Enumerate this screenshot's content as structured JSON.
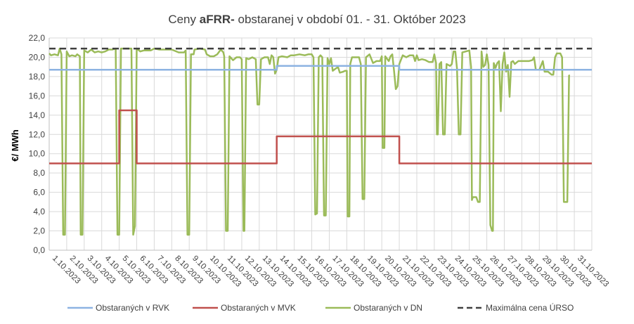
{
  "chart_data": {
    "type": "line",
    "title_prefix": "Ceny ",
    "title_bold": "aFRR-",
    "title_suffix": " obstaranej v období 01. - 31. Október 2023",
    "ylabel": "€/ MWh",
    "ylim": [
      0,
      22
    ],
    "yticks": [
      "0,0",
      "2,0",
      "4,0",
      "6,0",
      "8,0",
      "10,0",
      "12,0",
      "14,0",
      "16,0",
      "18,0",
      "20,0",
      "22,0"
    ],
    "grid": true,
    "legend_position": "bottom",
    "xlim": [
      1,
      32
    ],
    "categories": [
      "1.10.2023",
      "2.10.2023",
      "3.10.2023",
      "4.10.2023",
      "5.10.2023",
      "6.10.2023",
      "7.10.2023",
      "8.10.2023",
      "9.10.2023",
      "10.10.2023",
      "11.10.2023",
      "12.10.2023",
      "13.10.2023",
      "14.10.2023",
      "15.10.2023",
      "16.10.2023",
      "17.10.2023",
      "18.10.2023",
      "19.10.2023",
      "20.10.2023",
      "21.10.2023",
      "22.10.2023",
      "23.10.2023",
      "24.10.2023",
      "25.10.2023",
      "26.10.2023",
      "27.10.2023",
      "28.10.2023",
      "29.10.2023",
      "30.10.2023",
      "31.10.2023"
    ],
    "series": [
      {
        "name": "Obstaraných v RVK",
        "color": "#8db3e2",
        "style": "solid",
        "points": [
          [
            1,
            18.7
          ],
          [
            14,
            18.7
          ],
          [
            14,
            19.1
          ],
          [
            21,
            19.1
          ],
          [
            21,
            18.7
          ],
          [
            32,
            18.7
          ]
        ]
      },
      {
        "name": "Obstaraných v MVK",
        "color": "#c0504d",
        "style": "solid",
        "points": [
          [
            1,
            9.0
          ],
          [
            5,
            9.0
          ],
          [
            5,
            14.5
          ],
          [
            6,
            14.5
          ],
          [
            6,
            9.0
          ],
          [
            14,
            9.0
          ],
          [
            14,
            11.8
          ],
          [
            21,
            11.8
          ],
          [
            21,
            9.0
          ],
          [
            32,
            9.0
          ]
        ]
      },
      {
        "name": "Obstaraných v DN",
        "color": "#9bbb59",
        "style": "solid",
        "points": [
          [
            1.0,
            20.4
          ],
          [
            1.1,
            20.2
          ],
          [
            1.3,
            20.3
          ],
          [
            1.5,
            20.2
          ],
          [
            1.6,
            20.9
          ],
          [
            1.7,
            20.3
          ],
          [
            1.8,
            1.6
          ],
          [
            1.9,
            1.6
          ],
          [
            2.0,
            20.6
          ],
          [
            2.15,
            20.1
          ],
          [
            2.3,
            20.2
          ],
          [
            2.5,
            20.1
          ],
          [
            2.6,
            20.3
          ],
          [
            2.75,
            20.1
          ],
          [
            2.8,
            1.6
          ],
          [
            2.9,
            1.6
          ],
          [
            3.0,
            20.7
          ],
          [
            3.2,
            20.5
          ],
          [
            3.4,
            20.8
          ],
          [
            3.6,
            20.5
          ],
          [
            3.8,
            20.6
          ],
          [
            4.0,
            20.5
          ],
          [
            4.2,
            20.6
          ],
          [
            4.4,
            20.8
          ],
          [
            4.6,
            20.8
          ],
          [
            4.8,
            20.9
          ],
          [
            4.9,
            1.6
          ],
          [
            5.0,
            1.6
          ],
          [
            5.1,
            20.9
          ],
          [
            5.3,
            20.9
          ],
          [
            5.5,
            20.9
          ],
          [
            5.7,
            20.9
          ],
          [
            5.8,
            1.6
          ],
          [
            5.9,
            2.5
          ],
          [
            6.0,
            20.9
          ],
          [
            6.2,
            20.6
          ],
          [
            6.4,
            20.7
          ],
          [
            6.6,
            20.7
          ],
          [
            6.8,
            20.7
          ],
          [
            7.0,
            20.9
          ],
          [
            7.3,
            20.8
          ],
          [
            7.6,
            20.8
          ],
          [
            7.8,
            20.8
          ],
          [
            8.0,
            20.8
          ],
          [
            8.4,
            20.5
          ],
          [
            8.7,
            20.5
          ],
          [
            8.8,
            20.7
          ],
          [
            8.9,
            1.6
          ],
          [
            9.0,
            1.6
          ],
          [
            9.1,
            20.3
          ],
          [
            9.25,
            20.3
          ],
          [
            9.3,
            20.8
          ],
          [
            9.6,
            20.9
          ],
          [
            9.9,
            20.8
          ],
          [
            10.0,
            20.3
          ],
          [
            10.2,
            20.1
          ],
          [
            10.4,
            20.1
          ],
          [
            10.6,
            20.3
          ],
          [
            10.8,
            20.8
          ],
          [
            10.95,
            20.5
          ],
          [
            11.0,
            20.1
          ],
          [
            11.1,
            2.0
          ],
          [
            11.2,
            2.0
          ],
          [
            11.3,
            20.1
          ],
          [
            11.5,
            19.7
          ],
          [
            11.7,
            20.0
          ],
          [
            11.9,
            20.0
          ],
          [
            12.0,
            19.8
          ],
          [
            12.1,
            2.0
          ],
          [
            12.15,
            2.0
          ],
          [
            12.25,
            19.9
          ],
          [
            12.4,
            19.8
          ],
          [
            12.6,
            20.0
          ],
          [
            12.8,
            19.8
          ],
          [
            12.9,
            15.1
          ],
          [
            13.0,
            15.1
          ],
          [
            13.1,
            19.8
          ],
          [
            13.3,
            20.0
          ],
          [
            13.5,
            20.0
          ],
          [
            13.6,
            19.3
          ],
          [
            13.7,
            20.2
          ],
          [
            13.8,
            20.0
          ],
          [
            13.9,
            18.3
          ],
          [
            14.0,
            18.7
          ],
          [
            14.1,
            20.0
          ],
          [
            14.3,
            20.1
          ],
          [
            14.6,
            20.0
          ],
          [
            14.8,
            20.2
          ],
          [
            15.0,
            20.2
          ],
          [
            15.3,
            20.3
          ],
          [
            15.6,
            20.2
          ],
          [
            15.8,
            20.3
          ],
          [
            16.0,
            20.3
          ],
          [
            16.1,
            20.0
          ],
          [
            16.2,
            3.7
          ],
          [
            16.3,
            3.8
          ],
          [
            16.4,
            20.0
          ],
          [
            16.5,
            20.2
          ],
          [
            16.6,
            20.0
          ],
          [
            16.7,
            3.6
          ],
          [
            16.8,
            3.6
          ],
          [
            16.9,
            19.9
          ],
          [
            17.0,
            19.3
          ],
          [
            17.1,
            19.9
          ],
          [
            17.2,
            18.6
          ],
          [
            17.35,
            18.8
          ],
          [
            17.5,
            19.0
          ],
          [
            17.6,
            18.4
          ],
          [
            17.8,
            18.5
          ],
          [
            17.9,
            18.6
          ],
          [
            18.0,
            18.6
          ],
          [
            18.05,
            3.5
          ],
          [
            18.15,
            3.5
          ],
          [
            18.2,
            19.3
          ],
          [
            18.3,
            20.0
          ],
          [
            18.5,
            20.0
          ],
          [
            18.7,
            20.0
          ],
          [
            18.8,
            19.3
          ],
          [
            18.9,
            5.3
          ],
          [
            19.0,
            5.3
          ],
          [
            19.1,
            20.0
          ],
          [
            19.3,
            20.3
          ],
          [
            19.5,
            19.4
          ],
          [
            19.7,
            19.6
          ],
          [
            19.9,
            19.6
          ],
          [
            20.0,
            20.1
          ],
          [
            20.05,
            10.6
          ],
          [
            20.15,
            10.6
          ],
          [
            20.2,
            20.1
          ],
          [
            20.4,
            19.6
          ],
          [
            20.5,
            20.1
          ],
          [
            20.6,
            20.3
          ],
          [
            20.7,
            18.6
          ],
          [
            20.8,
            16.7
          ],
          [
            20.9,
            17.0
          ],
          [
            21.0,
            19.3
          ],
          [
            21.2,
            20.2
          ],
          [
            21.4,
            20.0
          ],
          [
            21.6,
            20.2
          ],
          [
            21.8,
            20.2
          ],
          [
            21.9,
            19.6
          ],
          [
            22.0,
            20.2
          ],
          [
            22.1,
            19.7
          ],
          [
            22.3,
            19.8
          ],
          [
            22.5,
            19.7
          ],
          [
            22.7,
            19.5
          ],
          [
            22.9,
            19.5
          ],
          [
            23.0,
            20.3
          ],
          [
            23.1,
            19.4
          ],
          [
            23.15,
            12.0
          ],
          [
            23.2,
            12.0
          ],
          [
            23.3,
            19.3
          ],
          [
            23.4,
            19.5
          ],
          [
            23.5,
            12.0
          ],
          [
            23.6,
            12.0
          ],
          [
            23.7,
            19.3
          ],
          [
            23.9,
            19.1
          ],
          [
            24.0,
            19.3
          ],
          [
            24.1,
            20.6
          ],
          [
            24.2,
            20.6
          ],
          [
            24.3,
            18.8
          ],
          [
            24.4,
            12.0
          ],
          [
            24.5,
            12.0
          ],
          [
            24.6,
            20.5
          ],
          [
            24.8,
            20.6
          ],
          [
            25.0,
            20.7
          ],
          [
            25.1,
            19.0
          ],
          [
            25.15,
            5.2
          ],
          [
            25.2,
            5.5
          ],
          [
            25.4,
            5.5
          ],
          [
            25.5,
            5.0
          ],
          [
            25.6,
            5.0
          ],
          [
            25.7,
            20.6
          ],
          [
            25.8,
            19.0
          ],
          [
            25.9,
            19.2
          ],
          [
            26.0,
            20.3
          ],
          [
            26.1,
            19.2
          ],
          [
            26.2,
            2.6
          ],
          [
            26.3,
            2.0
          ],
          [
            26.35,
            2.0
          ],
          [
            26.4,
            19.4
          ],
          [
            26.5,
            18.9
          ],
          [
            26.6,
            19.4
          ],
          [
            26.7,
            19.6
          ],
          [
            26.8,
            14.4
          ],
          [
            26.9,
            19.3
          ],
          [
            27.0,
            20.5
          ],
          [
            27.1,
            18.5
          ],
          [
            27.2,
            19.2
          ],
          [
            27.3,
            15.9
          ],
          [
            27.4,
            19.5
          ],
          [
            27.5,
            19.6
          ],
          [
            27.6,
            19.3
          ],
          [
            27.8,
            19.6
          ],
          [
            28.0,
            19.6
          ],
          [
            28.2,
            19.6
          ],
          [
            28.4,
            19.6
          ],
          [
            28.6,
            19.7
          ],
          [
            28.7,
            20.0
          ],
          [
            28.8,
            18.7
          ],
          [
            29.0,
            18.7
          ],
          [
            29.2,
            19.6
          ],
          [
            29.3,
            18.5
          ],
          [
            29.5,
            18.5
          ],
          [
            29.7,
            18.2
          ],
          [
            29.8,
            18.2
          ],
          [
            29.9,
            20.0
          ],
          [
            30.0,
            20.4
          ],
          [
            30.2,
            20.4
          ],
          [
            30.3,
            20.0
          ],
          [
            30.4,
            5.0
          ],
          [
            30.6,
            5.0
          ],
          [
            30.7,
            18.1
          ],
          [
            30.75,
            18.1
          ]
        ]
      },
      {
        "name": "Maximálna cena ÚRSO",
        "color": "#404040",
        "style": "dashed",
        "points": [
          [
            1,
            20.9
          ],
          [
            32,
            20.9
          ]
        ]
      }
    ]
  }
}
